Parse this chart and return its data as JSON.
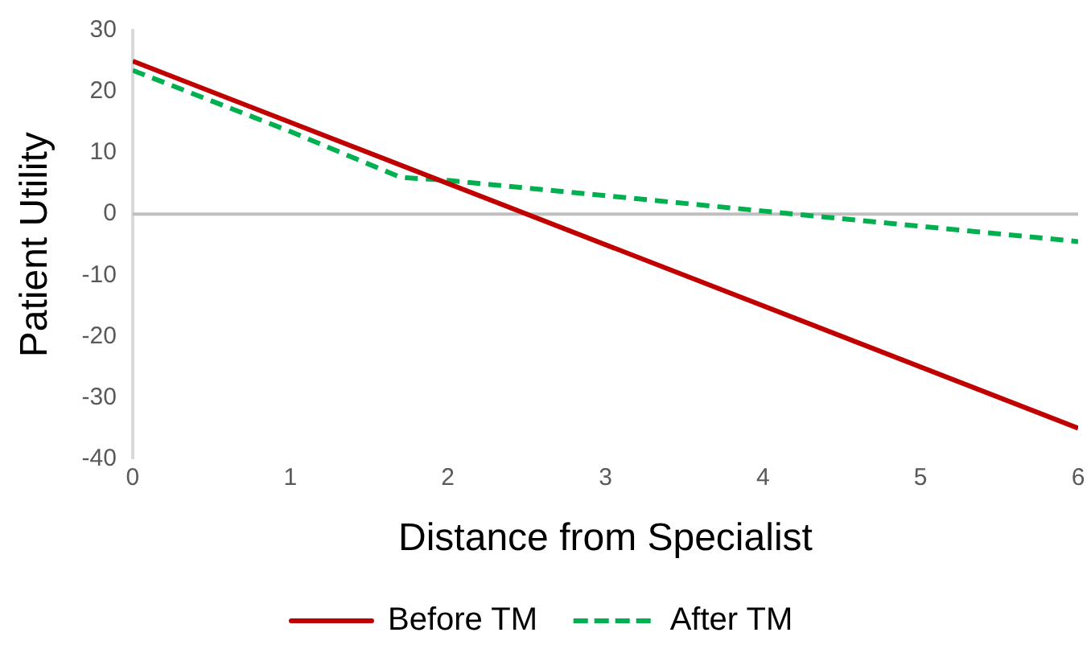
{
  "chart_data": {
    "type": "line",
    "xlabel": "Distance from Specialist",
    "ylabel": "Patient Utility",
    "series": [
      {
        "name": "Before TM",
        "color": "#c00000",
        "x": [
          0,
          6
        ],
        "values": [
          25,
          -35
        ],
        "line_style": "solid"
      },
      {
        "name": "After TM",
        "color": "#00b050",
        "x": [
          0,
          1,
          1.7,
          2,
          3,
          4,
          5,
          6
        ],
        "values": [
          23.5,
          13.5,
          6,
          5.5,
          3,
          0.5,
          -2,
          -4.5
        ],
        "line_style": "dashed"
      }
    ],
    "xlim": [
      0,
      6
    ],
    "xticks": [
      0,
      1,
      2,
      3,
      4,
      5,
      6
    ],
    "ylim": [
      -40,
      30
    ],
    "yticks": [
      -40,
      -30,
      -20,
      -10,
      0,
      10,
      20,
      30
    ],
    "ref_lines": [
      {
        "axis": "y",
        "value": 0,
        "color": "#bfbfbf"
      }
    ],
    "grid": false,
    "legend": "bottom",
    "marker": "none"
  }
}
